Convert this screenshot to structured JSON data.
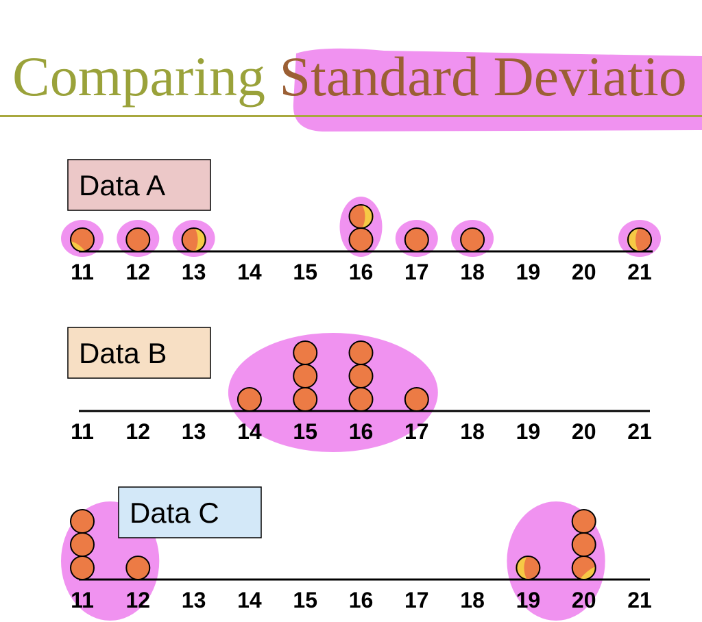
{
  "page": {
    "title_part1": "Comparing",
    "title_part2": "Standard Deviatio"
  },
  "colors": {
    "title_olive": "#9aa23a",
    "title_brown": "#9b5f34",
    "highlight_pink": "#ef8cef",
    "dot_orange": "#ec7b45",
    "dot_yellow": "#f6c945",
    "box_a": "#ecc8c8",
    "box_b": "#f7dfc4",
    "box_c": "#d3e8f8"
  },
  "chart_data": [
    {
      "type": "scatter",
      "subtype": "dot-plot",
      "title": "Data A",
      "x_ticks": [
        11,
        12,
        13,
        14,
        15,
        16,
        17,
        18,
        19,
        20,
        21
      ],
      "xlim": [
        11,
        21
      ],
      "values": [
        11,
        12,
        13,
        16,
        16,
        17,
        18,
        21
      ],
      "highlight_groups": [
        [
          11
        ],
        [
          12
        ],
        [
          13
        ],
        [
          16
        ],
        [
          17
        ],
        [
          18
        ],
        [
          21
        ]
      ]
    },
    {
      "type": "scatter",
      "subtype": "dot-plot",
      "title": "Data B",
      "x_ticks": [
        11,
        12,
        13,
        14,
        15,
        16,
        17,
        18,
        19,
        20,
        21
      ],
      "xlim": [
        11,
        21
      ],
      "values": [
        14,
        15,
        15,
        15,
        16,
        16,
        16,
        17
      ],
      "highlight_groups": [
        [
          14,
          15,
          16,
          17
        ]
      ]
    },
    {
      "type": "scatter",
      "subtype": "dot-plot",
      "title": "Data C",
      "x_ticks": [
        11,
        12,
        13,
        14,
        15,
        16,
        17,
        18,
        19,
        20,
        21
      ],
      "xlim": [
        11,
        21
      ],
      "values": [
        11,
        11,
        11,
        12,
        19,
        20,
        20,
        20
      ],
      "highlight_groups": [
        [
          11,
          12
        ],
        [
          19,
          20
        ]
      ]
    }
  ]
}
